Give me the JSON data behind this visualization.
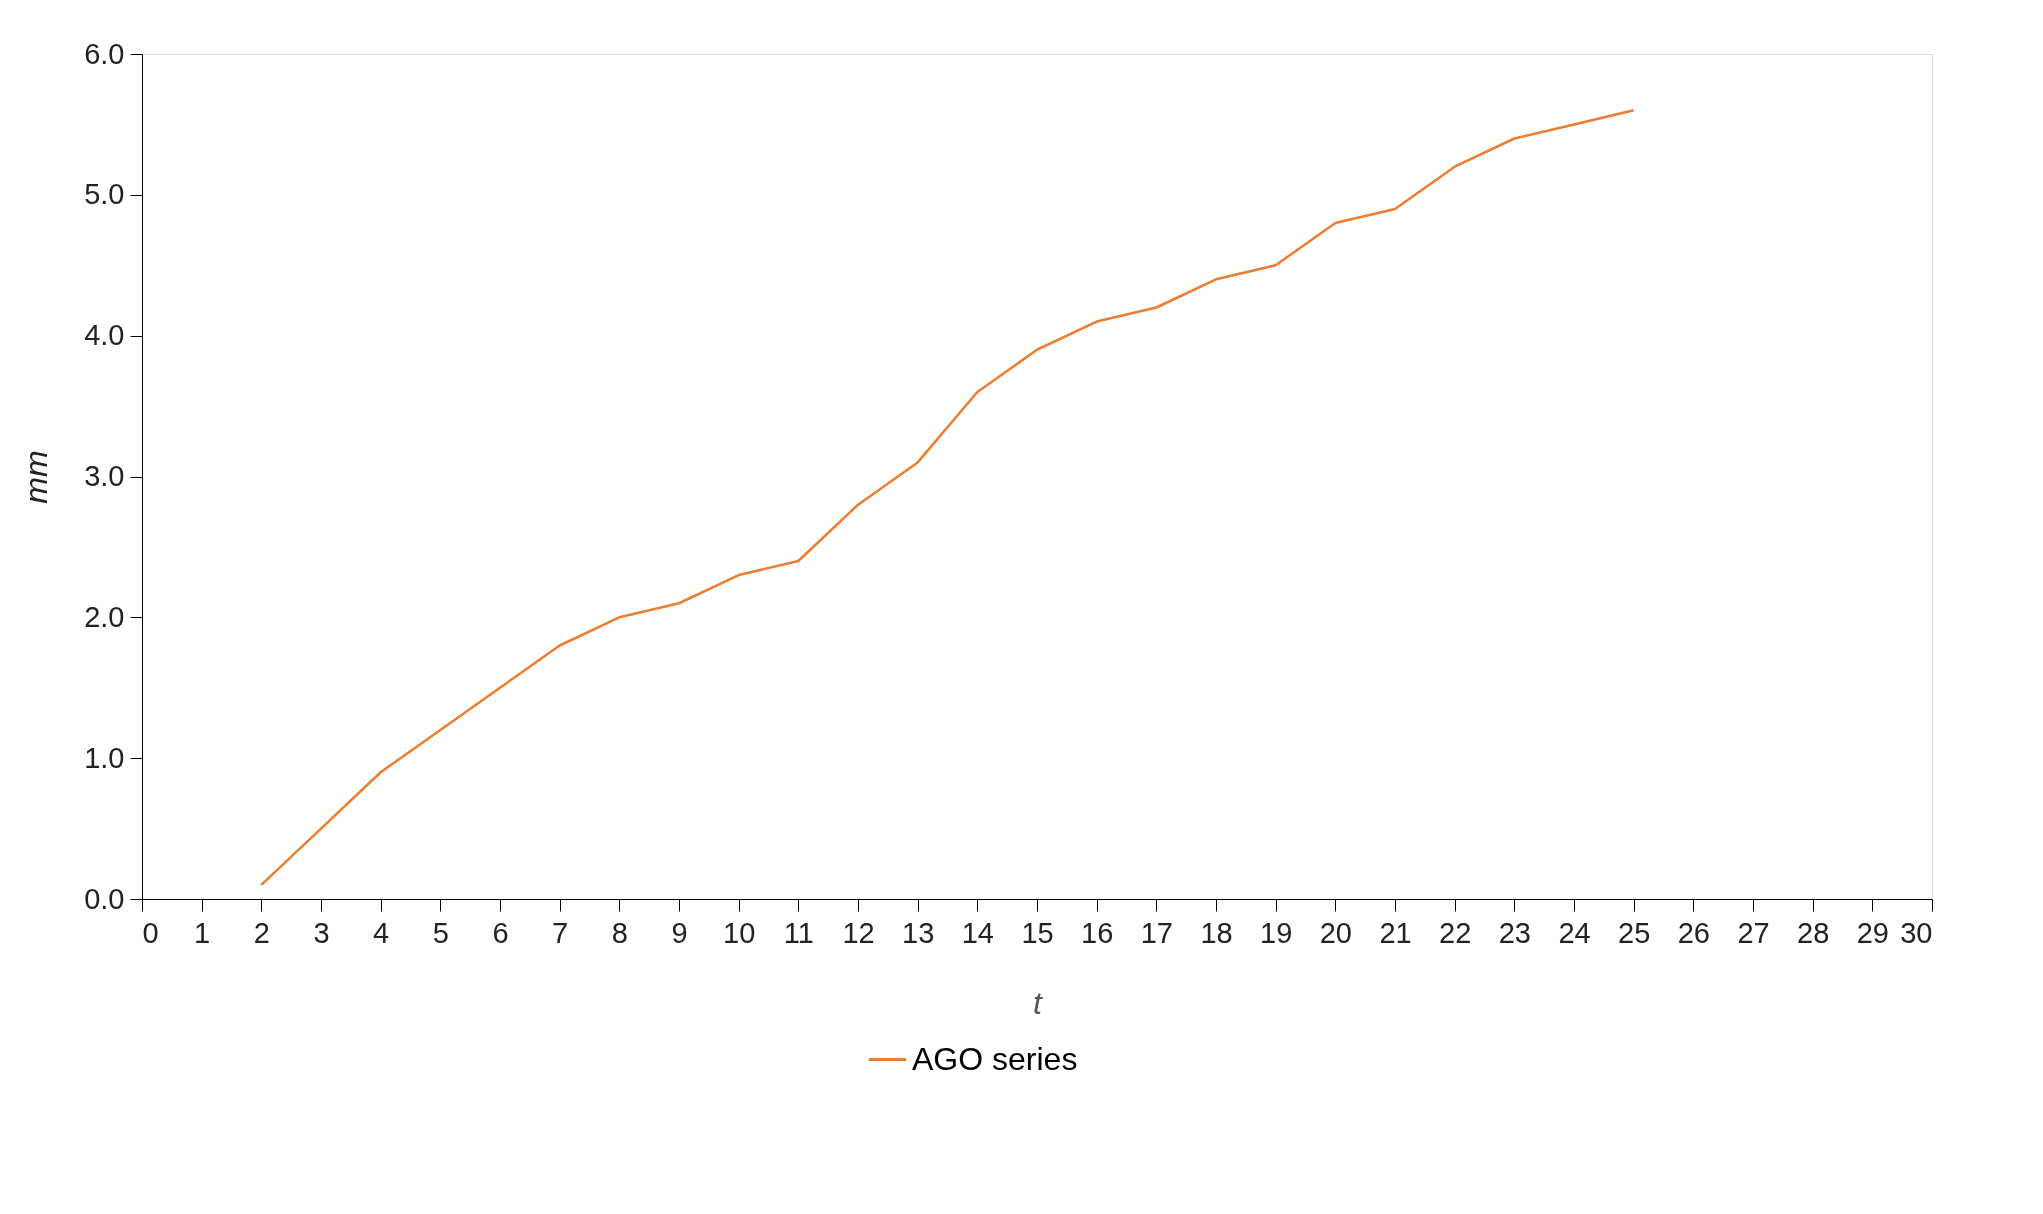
{
  "chart_data": {
    "type": "line",
    "xlabel": "t",
    "ylabel": "mm",
    "x": [
      2,
      3,
      4,
      5,
      6,
      7,
      8,
      9,
      10,
      11,
      12,
      13,
      14,
      15,
      16,
      17,
      18,
      19,
      20,
      21,
      22,
      23,
      24,
      25
    ],
    "series": [
      {
        "name": "AGO series",
        "color": "#ed7d31",
        "values": [
          0.1,
          0.5,
          0.9,
          1.2,
          1.5,
          1.8,
          2.0,
          2.1,
          2.3,
          2.4,
          2.8,
          3.1,
          3.6,
          3.9,
          4.1,
          4.2,
          4.4,
          4.5,
          4.8,
          4.9,
          5.2,
          5.4,
          5.5,
          5.6
        ]
      }
    ],
    "xlim": [
      0,
      30
    ],
    "xticks": [
      0,
      1,
      2,
      3,
      4,
      5,
      6,
      7,
      8,
      9,
      10,
      11,
      12,
      13,
      14,
      15,
      16,
      17,
      18,
      19,
      20,
      21,
      22,
      23,
      24,
      25,
      26,
      27,
      28,
      29,
      30
    ],
    "ylim": [
      0,
      6
    ],
    "yticks": [
      {
        "value": 0,
        "label": "0.0"
      },
      {
        "value": 1,
        "label": "1.0"
      },
      {
        "value": 2,
        "label": "2.0"
      },
      {
        "value": 3,
        "label": "3.0"
      },
      {
        "value": 4,
        "label": "4.0"
      },
      {
        "value": 5,
        "label": "5.0"
      },
      {
        "value": 6,
        "label": "6.0"
      }
    ],
    "grid": false,
    "legend": "bottom",
    "marker": "none",
    "line_style": "solid"
  }
}
